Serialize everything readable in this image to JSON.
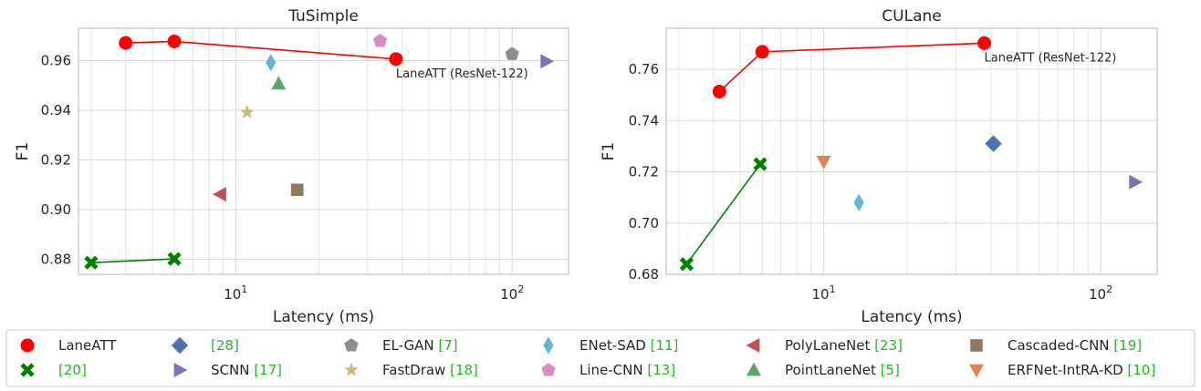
{
  "chart_data": [
    {
      "type": "scatter",
      "title": "TuSimple",
      "xlabel": "Latency (ms)",
      "ylabel": "F1",
      "xscale": "log",
      "xlim": [
        2.7,
        160
      ],
      "ylim": [
        0.874,
        0.973
      ],
      "xticks": [
        {
          "value": 10,
          "base": "10",
          "exp": "1"
        },
        {
          "value": 100,
          "base": "10",
          "exp": "2"
        }
      ],
      "yticks": [
        {
          "value": 0.88,
          "label": "0.88"
        },
        {
          "value": 0.9,
          "label": "0.90"
        },
        {
          "value": 0.92,
          "label": "0.92"
        },
        {
          "value": 0.94,
          "label": "0.94"
        },
        {
          "value": 0.96,
          "label": "0.96"
        }
      ],
      "grid": true,
      "series": [
        {
          "id": "laneatt",
          "marker": "circle",
          "color": "#ff0000",
          "line": true,
          "points": [
            [
              4.0,
              0.9671
            ],
            [
              6.0,
              0.9677
            ],
            [
              38.0,
              0.9606
            ]
          ]
        },
        {
          "id": "ref20",
          "marker": "x",
          "color": "#008000",
          "line": true,
          "points": [
            [
              3.0,
              0.8787
            ],
            [
              6.0,
              0.8802
            ]
          ]
        },
        {
          "id": "ref28",
          "marker": "diamond",
          "color": "#4c72b0",
          "line": false,
          "points": []
        },
        {
          "id": "scnn",
          "marker": "triangle-right",
          "color": "#8172b3",
          "line": false,
          "points": [
            [
              133.0,
              0.9597
            ]
          ]
        },
        {
          "id": "elgan",
          "marker": "pentagon",
          "color": "#8c8c8c",
          "line": false,
          "points": [
            [
              100.0,
              0.9626
            ]
          ]
        },
        {
          "id": "fastdraw",
          "marker": "star",
          "color": "#ccb974",
          "line": false,
          "points": [
            [
              11.0,
              0.9392
            ]
          ]
        },
        {
          "id": "enetsad",
          "marker": "thin-diamond",
          "color": "#64b5cd",
          "line": false,
          "points": [
            [
              13.4,
              0.9592
            ]
          ]
        },
        {
          "id": "linecnn",
          "marker": "pentagon",
          "color": "#da8bc3",
          "line": false,
          "points": [
            [
              33.3,
              0.9679
            ]
          ]
        },
        {
          "id": "polylanenet",
          "marker": "triangle-left",
          "color": "#c44e52",
          "line": false,
          "points": [
            [
              8.8,
              0.9062
            ]
          ]
        },
        {
          "id": "pointlanenet",
          "marker": "triangle-up",
          "color": "#55a868",
          "line": false,
          "points": [
            [
              14.3,
              0.9507
            ]
          ]
        },
        {
          "id": "cascaded",
          "marker": "square",
          "color": "#937860",
          "line": false,
          "points": [
            [
              16.7,
              0.908
            ]
          ]
        },
        {
          "id": "erfnet",
          "marker": "triangle-down",
          "color": "#dd8452",
          "line": false,
          "points": []
        }
      ],
      "annotations": [
        {
          "text": "LaneATT (ResNet-122)",
          "x": 38.0,
          "y": 0.9606,
          "placement": "below-right"
        }
      ]
    },
    {
      "type": "scatter",
      "title": "CULane",
      "xlabel": "Latency (ms)",
      "ylabel": "F1",
      "xscale": "log",
      "xlim": [
        2.7,
        160
      ],
      "ylim": [
        0.68,
        0.776
      ],
      "xticks": [
        {
          "value": 10,
          "base": "10",
          "exp": "1"
        },
        {
          "value": 100,
          "base": "10",
          "exp": "2"
        }
      ],
      "yticks": [
        {
          "value": 0.68,
          "label": "0.68"
        },
        {
          "value": 0.7,
          "label": "0.70"
        },
        {
          "value": 0.72,
          "label": "0.72"
        },
        {
          "value": 0.74,
          "label": "0.74"
        },
        {
          "value": 0.76,
          "label": "0.76"
        }
      ],
      "grid": true,
      "series": [
        {
          "id": "laneatt",
          "marker": "circle",
          "color": "#ff0000",
          "line": true,
          "points": [
            [
              4.2,
              0.7513
            ],
            [
              6.0,
              0.7668
            ],
            [
              38.0,
              0.7702
            ]
          ]
        },
        {
          "id": "ref20",
          "marker": "x",
          "color": "#008000",
          "line": true,
          "points": [
            [
              3.2,
              0.684
            ],
            [
              5.9,
              0.723
            ]
          ]
        },
        {
          "id": "ref28",
          "marker": "diamond",
          "color": "#4c72b0",
          "line": false,
          "points": [
            [
              41.0,
              0.731
            ]
          ]
        },
        {
          "id": "scnn",
          "marker": "triangle-right",
          "color": "#8172b3",
          "line": false,
          "points": [
            [
              133.0,
              0.716
            ]
          ]
        },
        {
          "id": "elgan",
          "marker": "pentagon",
          "color": "#8c8c8c",
          "line": false,
          "points": []
        },
        {
          "id": "fastdraw",
          "marker": "star",
          "color": "#ccb974",
          "line": false,
          "points": []
        },
        {
          "id": "enetsad",
          "marker": "thin-diamond",
          "color": "#64b5cd",
          "line": false,
          "points": [
            [
              13.4,
              0.708
            ]
          ]
        },
        {
          "id": "linecnn",
          "marker": "pentagon",
          "color": "#da8bc3",
          "line": false,
          "points": []
        },
        {
          "id": "polylanenet",
          "marker": "triangle-left",
          "color": "#c44e52",
          "line": false,
          "points": []
        },
        {
          "id": "pointlanenet",
          "marker": "triangle-up",
          "color": "#55a868",
          "line": false,
          "points": []
        },
        {
          "id": "cascaded",
          "marker": "square",
          "color": "#937860",
          "line": false,
          "points": []
        },
        {
          "id": "erfnet",
          "marker": "triangle-down",
          "color": "#dd8452",
          "line": false,
          "points": [
            [
              10.0,
              0.724
            ]
          ]
        }
      ],
      "annotations": [
        {
          "text": "LaneATT (ResNet-122)",
          "x": 38.0,
          "y": 0.7702,
          "placement": "below-right"
        }
      ]
    }
  ],
  "legend": {
    "placement": "bottom",
    "entries": [
      {
        "id": "laneatt",
        "label": "LaneATT",
        "ref": "",
        "suffix": "",
        "marker": "circle",
        "color": "#ff0000"
      },
      {
        "id": "ref28",
        "label": "",
        "ref": "[28]",
        "suffix": "",
        "marker": "diamond",
        "color": "#4c72b0"
      },
      {
        "id": "elgan",
        "label": "EL-GAN ",
        "ref": "[7]",
        "suffix": "",
        "marker": "pentagon",
        "color": "#8c8c8c"
      },
      {
        "id": "enetsad",
        "label": "ENet-SAD ",
        "ref": "[11]",
        "suffix": "",
        "marker": "thin-diamond",
        "color": "#64b5cd"
      },
      {
        "id": "polylanenet",
        "label": "PolyLaneNet ",
        "ref": "[23]",
        "suffix": "",
        "marker": "triangle-left",
        "color": "#c44e52"
      },
      {
        "id": "cascaded",
        "label": "Cascaded-CNN ",
        "ref": "[19]",
        "suffix": "",
        "marker": "square",
        "color": "#937860"
      },
      {
        "id": "ref20",
        "label": "",
        "ref": "[20]",
        "suffix": "",
        "marker": "x",
        "color": "#008000"
      },
      {
        "id": "scnn",
        "label": "SCNN ",
        "ref": "[17]",
        "suffix": "",
        "marker": "triangle-right",
        "color": "#8172b3"
      },
      {
        "id": "fastdraw",
        "label": "FastDraw ",
        "ref": "[18]",
        "suffix": "",
        "marker": "star",
        "color": "#ccb974"
      },
      {
        "id": "linecnn",
        "label": "Line-CNN ",
        "ref": "[13]",
        "suffix": "",
        "marker": "pentagon",
        "color": "#da8bc3"
      },
      {
        "id": "pointlanenet",
        "label": "PointLaneNet ",
        "ref": "[5]",
        "suffix": "",
        "marker": "triangle-up",
        "color": "#55a868"
      },
      {
        "id": "erfnet",
        "label": "ERFNet-IntRA-KD ",
        "ref": "[10]",
        "suffix": "",
        "marker": "triangle-down",
        "color": "#dd8452"
      }
    ]
  },
  "colors": {
    "ref_link": "#22bb22"
  }
}
